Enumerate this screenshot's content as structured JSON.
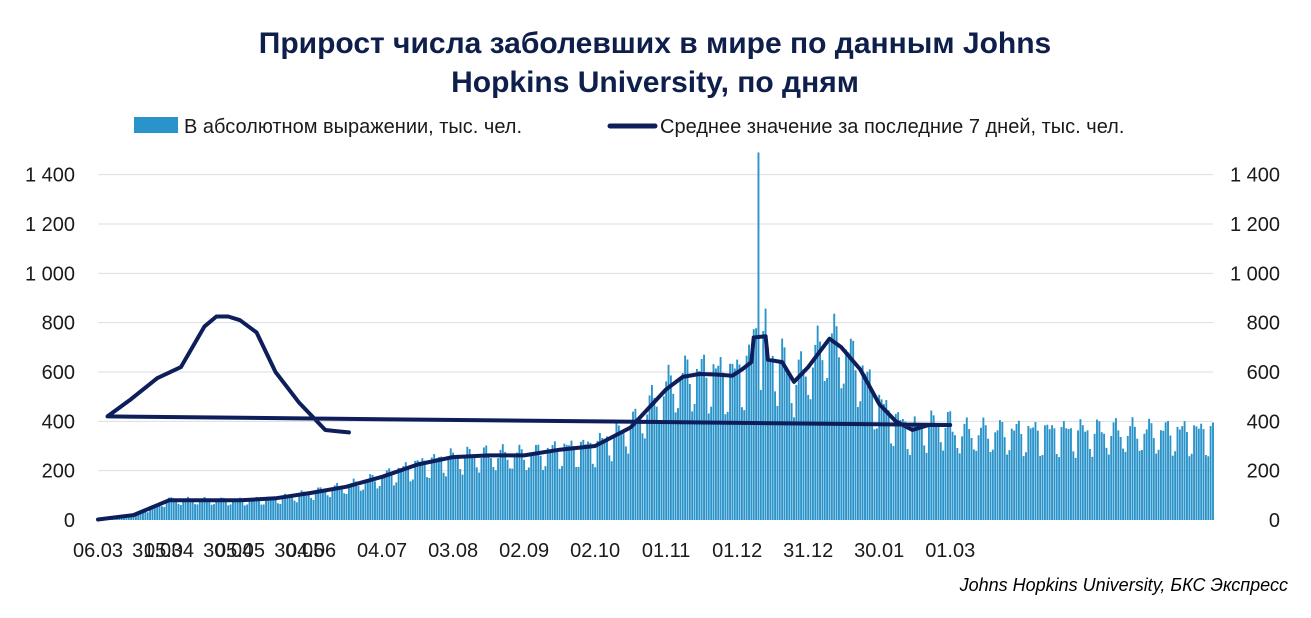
{
  "chart_data": {
    "type": "bar",
    "title_lines": [
      "Прирост числа заболевших в мире по данным Johns",
      "Hopkins University, по дням"
    ],
    "legend": [
      {
        "label": "В абсолютном выражении, тыс. чел.",
        "kind": "bar",
        "color": "#2a93c9"
      },
      {
        "label": "Среднее значение за последние 7 дней, тыс. чел.",
        "kind": "line",
        "color": "#0e1e5b"
      }
    ],
    "legend_position": "top",
    "grid": true,
    "secondary_axis": true,
    "x_tick_labels": [
      "06.03",
      "05.04",
      "05.05",
      "04.06",
      "04.07",
      "03.08",
      "02.09",
      "02.10",
      "01.11",
      "01.12",
      "31.12",
      "30.01",
      "01.03",
      "31.03",
      "30.04",
      "30.05"
    ],
    "y_ticks": [
      0,
      200,
      400,
      600,
      800,
      1000,
      1200,
      1400
    ],
    "y_tick_labels": [
      "0",
      "200",
      "400",
      "600",
      "800",
      "1 000",
      "1 200",
      "1 400"
    ],
    "ylim": [
      0,
      1500
    ],
    "start_date": "06.03",
    "series": [
      {
        "name": "Среднее значение за последние 7 дней, тыс. чел.",
        "type": "line",
        "points": [
          [
            "06.03",
            2
          ],
          [
            "21.03",
            20
          ],
          [
            "05.04",
            80
          ],
          [
            "20.04",
            80
          ],
          [
            "05.05",
            80
          ],
          [
            "20.05",
            88
          ],
          [
            "04.06",
            110
          ],
          [
            "19.06",
            135
          ],
          [
            "04.07",
            175
          ],
          [
            "19.07",
            225
          ],
          [
            "03.08",
            255
          ],
          [
            "18.08",
            262
          ],
          [
            "02.09",
            262
          ],
          [
            "17.09",
            285
          ],
          [
            "02.10",
            300
          ],
          [
            "17.10",
            375
          ],
          [
            "01.11",
            530
          ],
          [
            "08.11",
            580
          ],
          [
            "15.11",
            592
          ],
          [
            "22.11",
            590
          ],
          [
            "29.11",
            585
          ],
          [
            "03.12",
            610
          ],
          [
            "07.12",
            640
          ],
          [
            "08.12",
            740
          ],
          [
            "13.12",
            745
          ],
          [
            "14.12",
            650
          ],
          [
            "20.12",
            640
          ],
          [
            "25.12",
            560
          ],
          [
            "31.12",
            620
          ],
          [
            "09.01",
            735
          ],
          [
            "14.01",
            700
          ],
          [
            "22.01",
            610
          ],
          [
            "30.01",
            470
          ],
          [
            "06.02",
            400
          ],
          [
            "13.02",
            365
          ],
          [
            "20.02",
            385
          ],
          [
            "01.03",
            385
          ],
          [
            "10.03",
            420
          ],
          [
            "20.03",
            490
          ],
          [
            "31.03",
            575
          ],
          [
            "10.04",
            620
          ],
          [
            "20.04",
            785
          ],
          [
            "25.04",
            825
          ],
          [
            "30.04",
            825
          ],
          [
            "05.05",
            810
          ],
          [
            "12.05",
            760
          ],
          [
            "20.05",
            600
          ],
          [
            "30.05",
            475
          ],
          [
            "10.06",
            365
          ],
          [
            "15.06",
            360
          ],
          [
            "20.06",
            355
          ]
        ]
      },
      {
        "name": "В абсолютном выражении, тыс. чел.",
        "type": "bar",
        "daily_count": 472,
        "spike": {
          "date": "10.12",
          "value": 1490
        }
      }
    ]
  },
  "footer": {
    "source": "Johns Hopkins University, БКС Экспресс"
  }
}
